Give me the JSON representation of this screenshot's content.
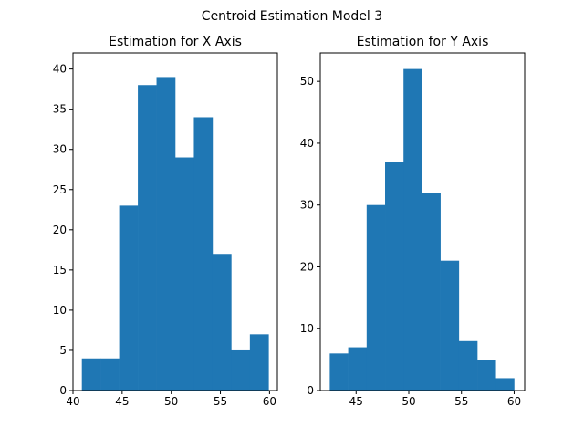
{
  "figure": {
    "suptitle": "Centroid Estimation Model 3"
  },
  "chart_data": [
    {
      "type": "bar",
      "title": "Estimation for X Axis",
      "xlabel": "",
      "ylabel": "",
      "bin_edges": [
        40.9,
        42.8,
        44.7,
        46.6,
        48.5,
        50.4,
        52.3,
        54.2,
        56.1,
        58.0,
        59.9
      ],
      "values": [
        4,
        4,
        23,
        38,
        39,
        29,
        34,
        17,
        5,
        7
      ],
      "xlim": [
        40.0,
        60.8
      ],
      "ylim": [
        0,
        42
      ],
      "xticks": [
        40,
        45,
        50,
        55,
        60
      ],
      "yticks": [
        0,
        5,
        10,
        15,
        20,
        25,
        30,
        35,
        40
      ],
      "grid": false,
      "color": "#1f77b4"
    },
    {
      "type": "bar",
      "title": "Estimation for Y Axis",
      "xlabel": "",
      "ylabel": "",
      "bin_edges": [
        42.5,
        44.25,
        46.0,
        47.75,
        49.5,
        51.25,
        53.0,
        54.75,
        56.5,
        58.25,
        60.0
      ],
      "values": [
        6,
        7,
        30,
        37,
        52,
        32,
        21,
        8,
        5,
        2
      ],
      "xlim": [
        41.6,
        61.0
      ],
      "ylim": [
        0,
        54.6
      ],
      "xticks": [
        45,
        50,
        55,
        60
      ],
      "yticks": [
        0,
        10,
        20,
        30,
        40,
        50
      ],
      "grid": false,
      "color": "#1f77b4"
    }
  ]
}
